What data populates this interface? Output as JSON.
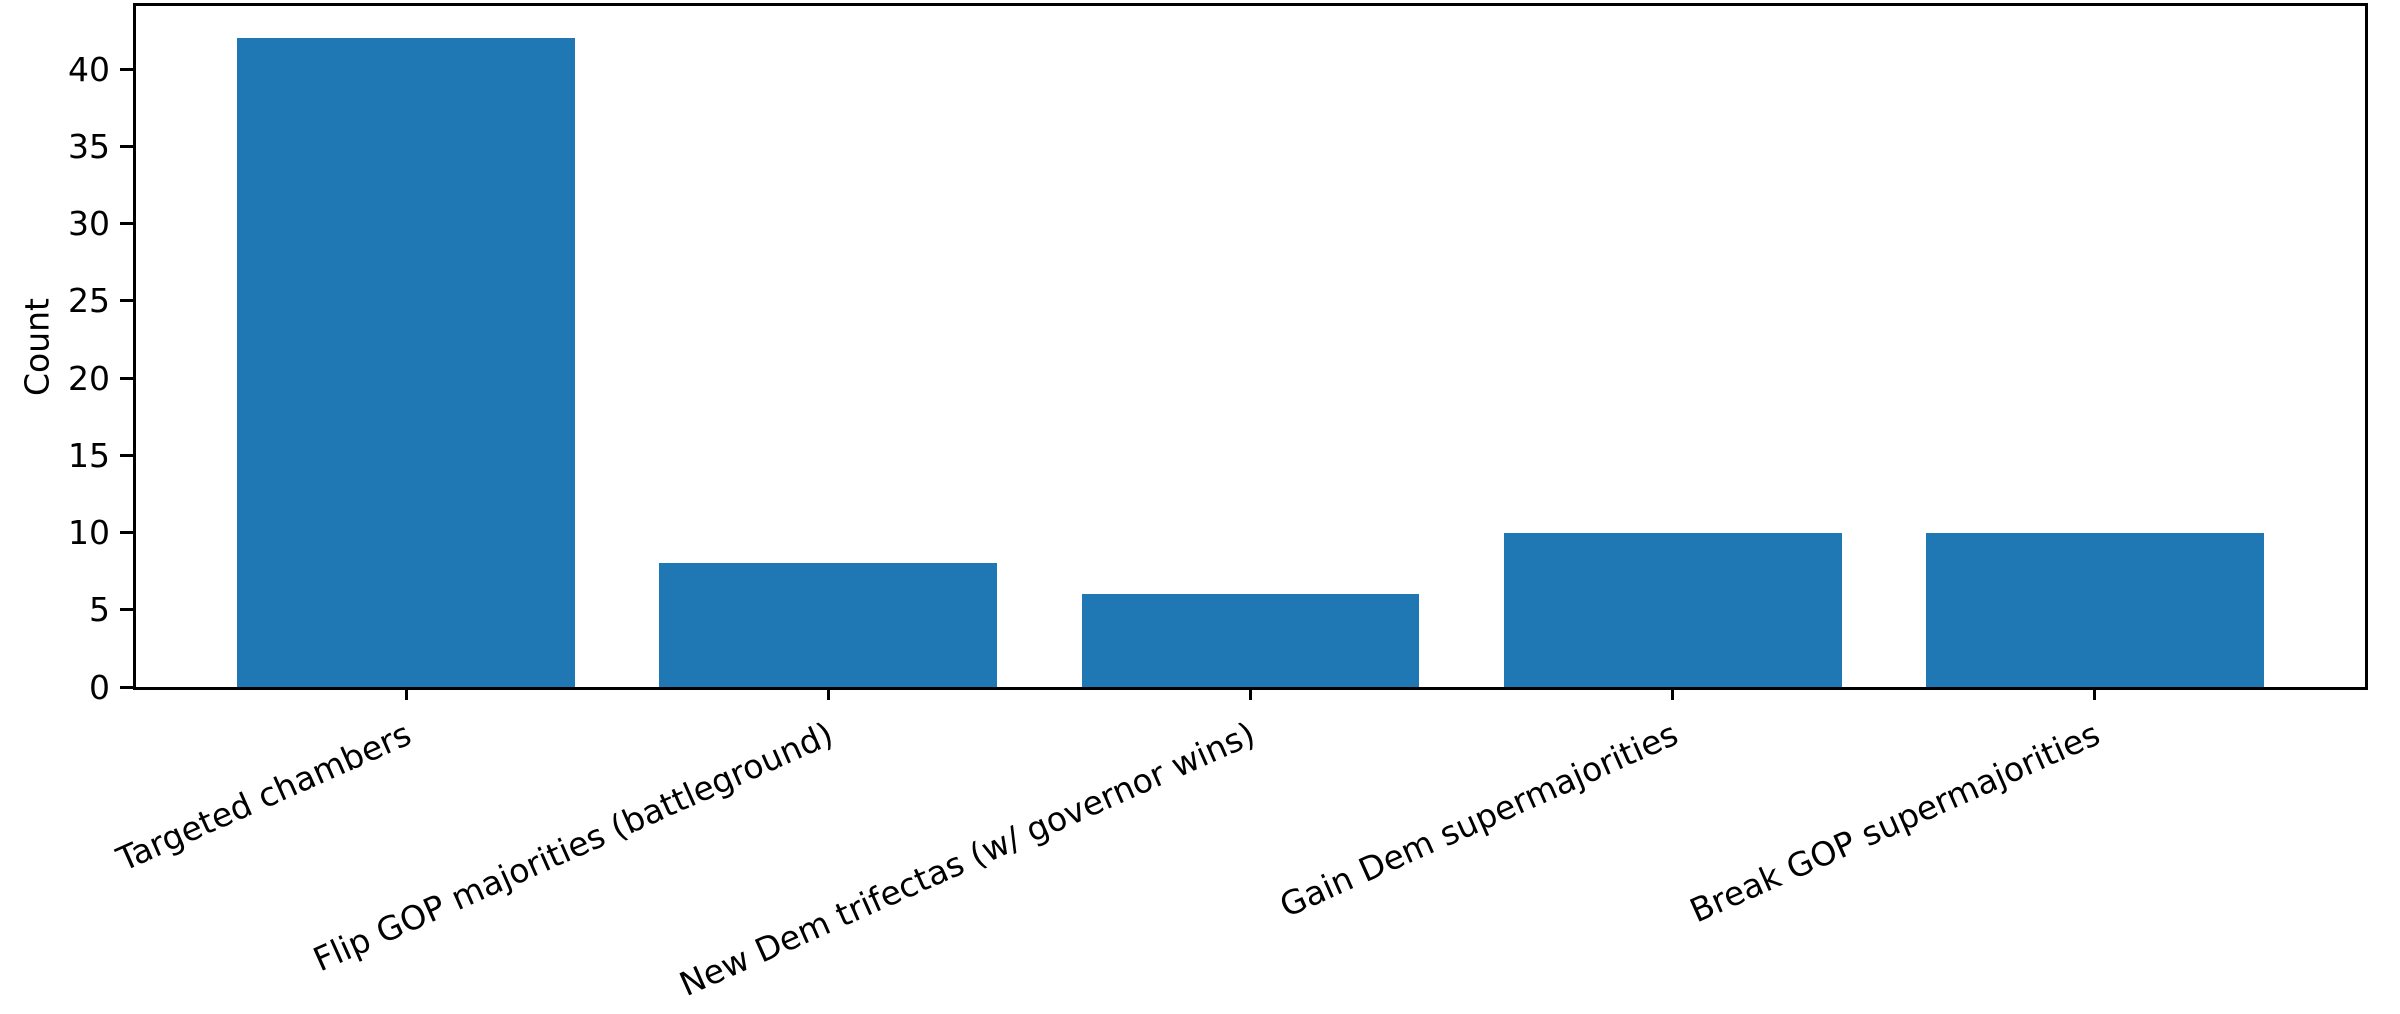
{
  "chart_data": {
    "type": "bar",
    "title": "",
    "xlabel": "",
    "ylabel": "Count",
    "categories": [
      "Targeted chambers",
      "Flip GOP majorities (battleground)",
      "New Dem trifectas (w/ governor wins)",
      "Gain Dem supermajorities",
      "Break GOP supermajorities"
    ],
    "values": [
      42,
      8,
      6,
      10,
      10
    ],
    "yticks": [
      0,
      5,
      10,
      15,
      20,
      25,
      30,
      35,
      40
    ],
    "ylim": [
      0,
      44.1
    ],
    "xlim": [
      -0.64,
      4.64
    ],
    "bar_width": 0.8,
    "x_tick_rotation": 24,
    "bar_color": "#1f77b4",
    "spine_color": "#000000",
    "text_color": "#000000",
    "background": "#ffffff",
    "grid": false,
    "legend": "none"
  }
}
